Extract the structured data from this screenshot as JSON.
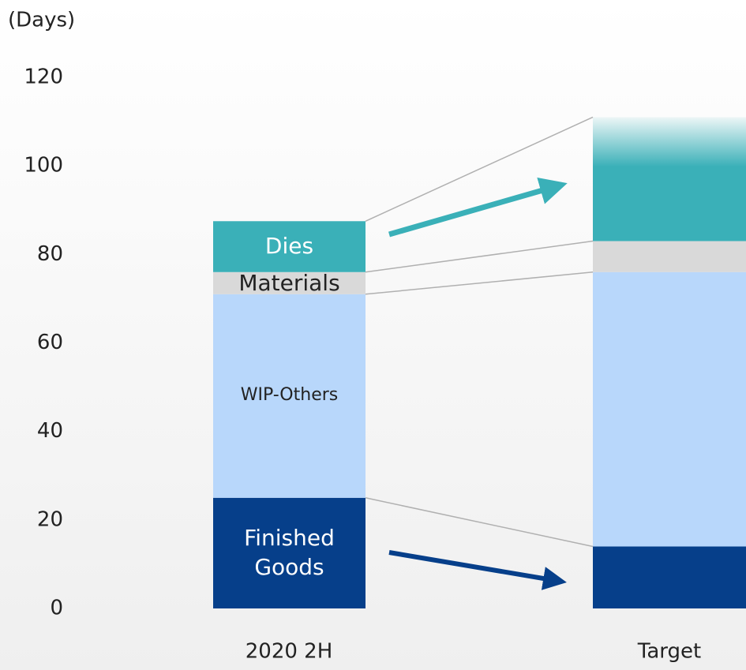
{
  "chart_data": {
    "type": "stacked_bar",
    "y_axis_label": "(Days)",
    "categories": [
      "2020 2H",
      "Target"
    ],
    "series": [
      {
        "name": "Finished Goods",
        "color": "#063f8a",
        "values": [
          25,
          14
        ]
      },
      {
        "name": "WIP-Others",
        "color": "#b8d7fb",
        "values": [
          46,
          62
        ]
      },
      {
        "name": "Materials",
        "color": "#d9d9d9",
        "values": [
          5,
          7
        ]
      },
      {
        "name": "Dies",
        "color": "#3ab0b8",
        "values": [
          11.5,
          28
        ]
      }
    ],
    "ylim": [
      0,
      120
    ],
    "yticks": [
      0,
      20,
      40,
      60,
      80,
      100,
      120
    ],
    "grid": false
  }
}
